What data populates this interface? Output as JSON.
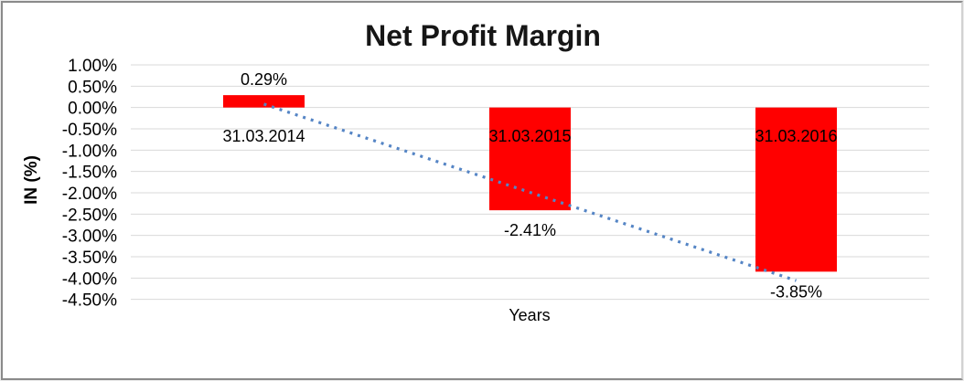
{
  "chart_data": {
    "type": "bar",
    "title": "Net Profit Margin",
    "xlabel": "Years",
    "ylabel": "IN (%)",
    "categories": [
      "31.03.2014",
      "31.03.2015",
      "31.03.2016"
    ],
    "values": [
      0.29,
      -2.41,
      -3.85
    ],
    "value_labels": [
      "0.29%",
      "-2.41%",
      "-3.85%"
    ],
    "yticks": [
      "1.00%",
      "0.50%",
      "0.00%",
      "-0.50%",
      "-1.00%",
      "-1.50%",
      "-2.00%",
      "-2.50%",
      "-3.00%",
      "-3.50%",
      "-4.00%",
      "-4.50%"
    ],
    "ylim": [
      -4.5,
      1.0
    ],
    "grid": "horizontal",
    "legend": "none",
    "colors": {
      "bar": "#ff0000",
      "gridline": "#d9d9d9",
      "text": "#000000",
      "trendline": "#5585c5",
      "frame_border": "#8a8a8a"
    },
    "trendline": {
      "type": "linear",
      "style": "dotted"
    }
  }
}
